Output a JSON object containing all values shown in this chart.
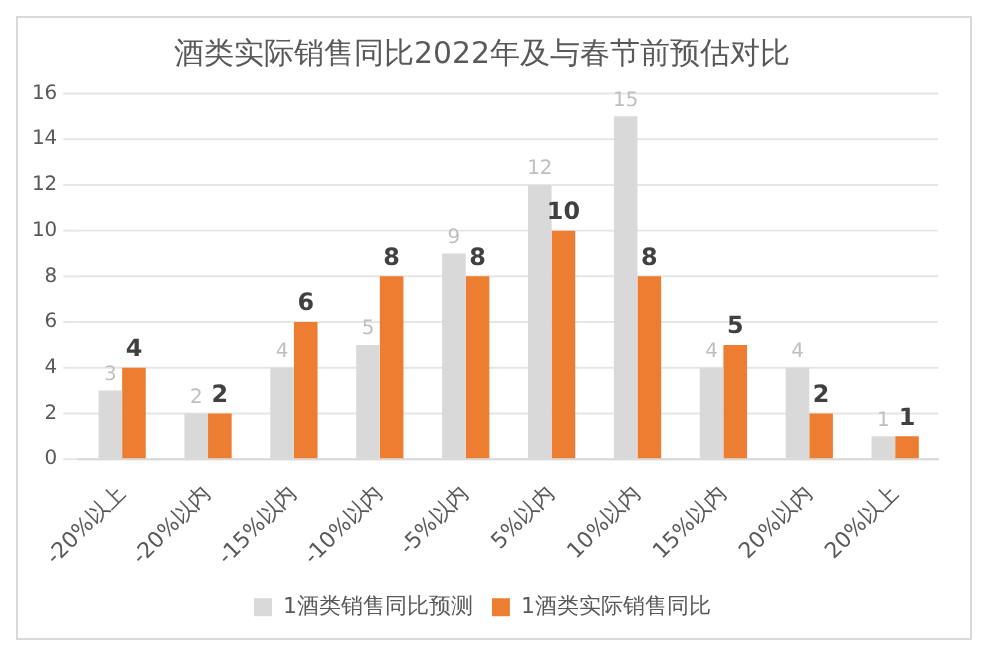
{
  "chart_data": {
    "type": "bar",
    "title": "酒类实际销售同比2022年及与春节前预估对比",
    "categories": [
      "-20%以上",
      "-20%以内",
      "-15%以内",
      "-10%以内",
      "-5%以内",
      "5%以内",
      "10%以内",
      "15%以内",
      "20%以内",
      "20%以上"
    ],
    "series": [
      {
        "name": "1酒类销售同比预测",
        "color": "#d9d9d9",
        "values": [
          3,
          2,
          4,
          5,
          9,
          12,
          15,
          4,
          4,
          1
        ]
      },
      {
        "name": "1酒类实际销售同比",
        "color": "#ed7d31",
        "values": [
          4,
          2,
          6,
          8,
          8,
          10,
          8,
          5,
          2,
          1
        ]
      }
    ],
    "ylim": [
      0,
      16
    ],
    "yticks": [
      0,
      2,
      4,
      6,
      8,
      10,
      12,
      14,
      16
    ],
    "grid": "y",
    "legend": "bottom",
    "data_labels": true
  }
}
